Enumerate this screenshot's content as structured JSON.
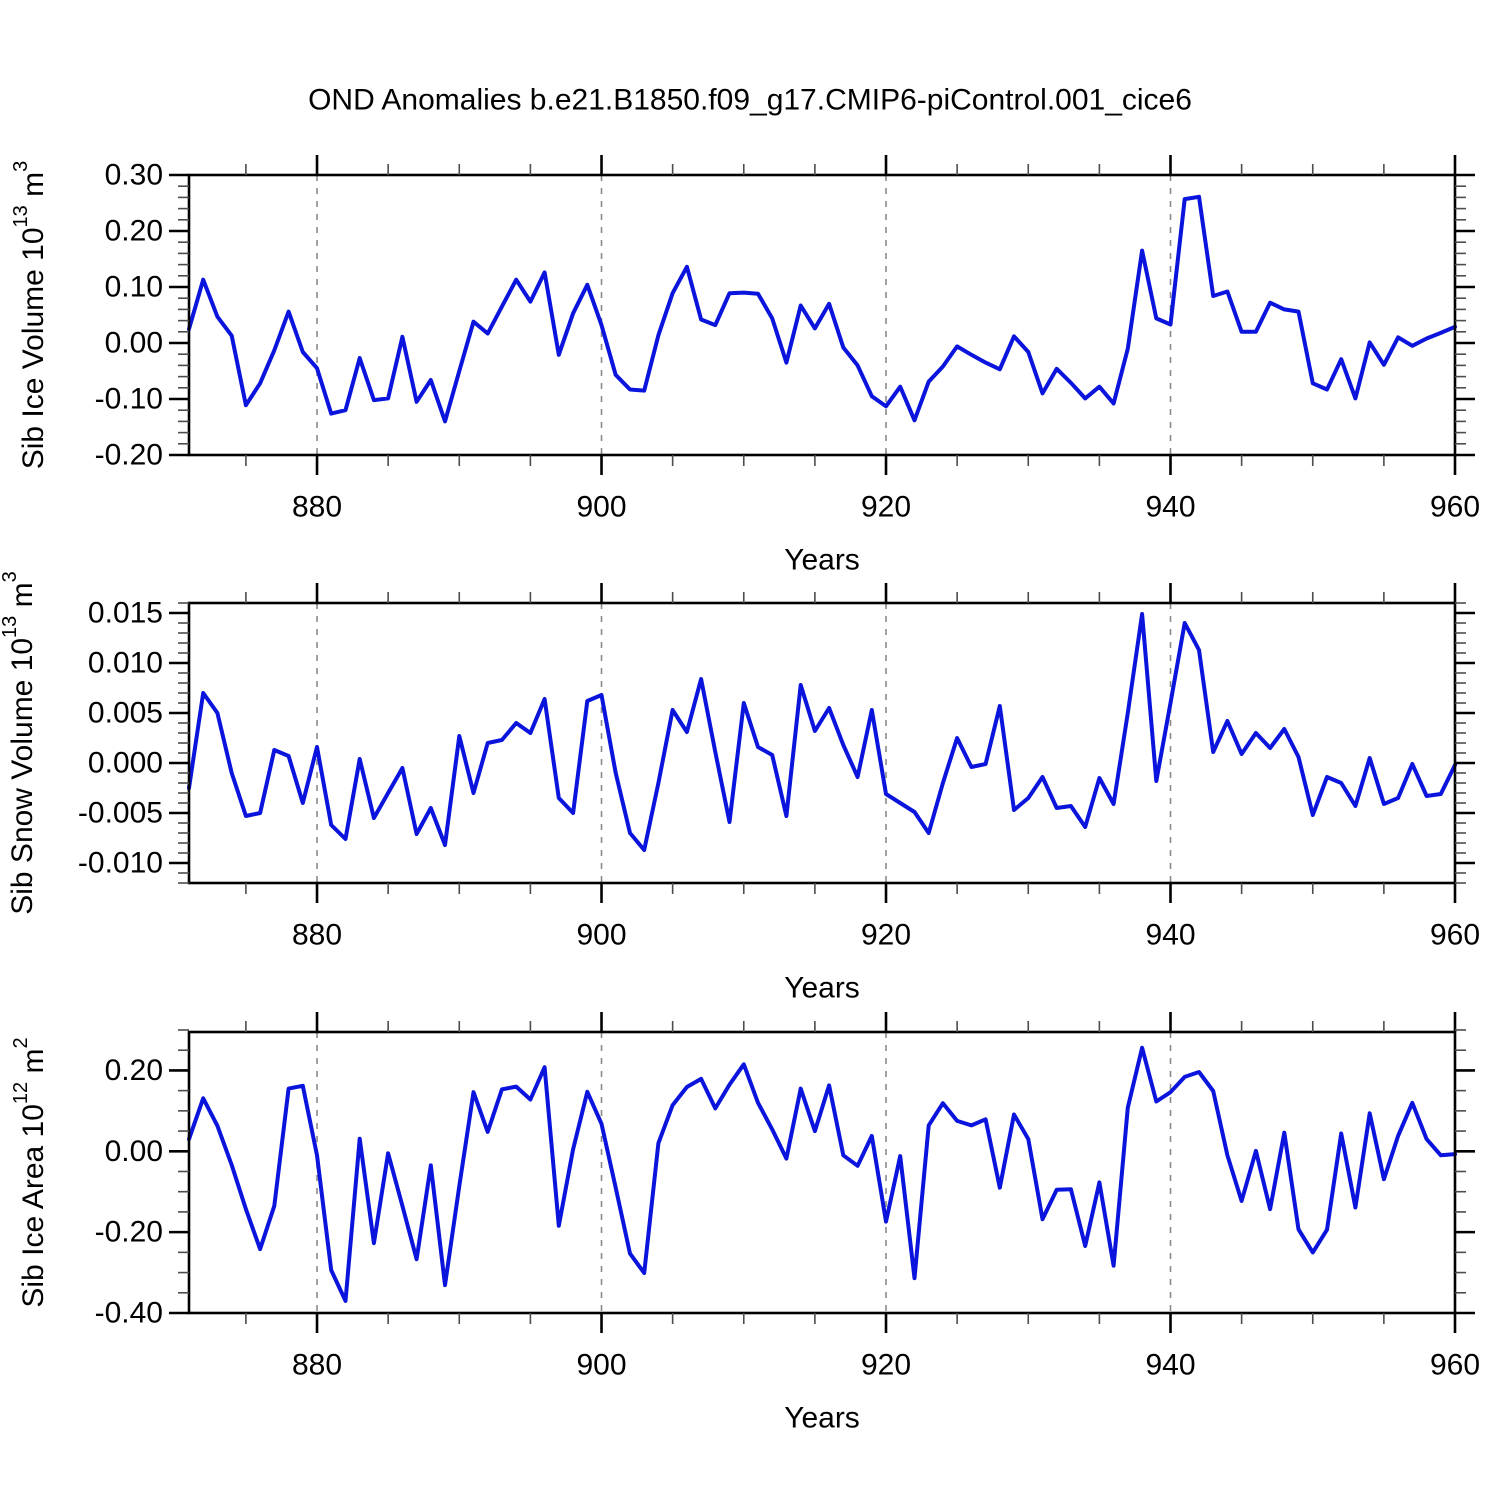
{
  "title": "OND Anomalies b.e21.B1850.f09_g17.CMIP6-piControl.001_cice6",
  "colors": {
    "background": "#ffffff",
    "line": "#0a14dc",
    "axis": "#000000",
    "grid": "#8a8a8a",
    "minor_tick": "#4d4d4d",
    "text": "#000000"
  },
  "x_axis": {
    "label": "Years",
    "x_start": 871,
    "x_end": 960,
    "major_ticks": [
      {
        "value": 880,
        "label": "880"
      },
      {
        "value": 900,
        "label": "900"
      },
      {
        "value": 920,
        "label": "920"
      },
      {
        "value": 940,
        "label": "940"
      },
      {
        "value": 960,
        "label": "960"
      }
    ],
    "minor_step": 5,
    "grid_years": [
      880,
      900,
      920,
      940
    ]
  },
  "years": [
    871,
    872,
    873,
    874,
    875,
    876,
    877,
    878,
    879,
    880,
    881,
    882,
    883,
    884,
    885,
    886,
    887,
    888,
    889,
    890,
    891,
    892,
    893,
    894,
    895,
    896,
    897,
    898,
    899,
    900,
    901,
    902,
    903,
    904,
    905,
    906,
    907,
    908,
    909,
    910,
    911,
    912,
    913,
    914,
    915,
    916,
    917,
    918,
    919,
    920,
    921,
    922,
    923,
    924,
    925,
    926,
    927,
    928,
    929,
    930,
    931,
    932,
    933,
    934,
    935,
    936,
    937,
    938,
    939,
    940,
    941,
    942,
    943,
    944,
    945,
    946,
    947,
    948,
    949,
    950,
    951,
    952,
    953,
    954,
    955,
    956,
    957,
    958,
    959,
    960
  ],
  "chart_data": [
    {
      "type": "line",
      "series_name": "Sib Ice Volume anomaly",
      "xlabel": "Years",
      "ylabel": "Sib Ice Volume 10^13 m^3",
      "ylabel_parts": [
        {
          "text": "Sib Ice Volume 10"
        },
        {
          "text": "13",
          "super": true
        },
        {
          "text": " m"
        },
        {
          "text": "3",
          "super": true
        }
      ],
      "ylim": [
        -0.2,
        0.3
      ],
      "yticks": [
        {
          "value": 0.3,
          "label": "0.30"
        },
        {
          "value": 0.2,
          "label": "0.20"
        },
        {
          "value": 0.1,
          "label": "0.10"
        },
        {
          "value": 0.0,
          "label": "0.00"
        },
        {
          "value": -0.1,
          "label": "-0.10"
        },
        {
          "value": -0.2,
          "label": "-0.20"
        }
      ],
      "yminor_step": 0.02,
      "values": [
        0.025,
        0.113,
        0.047,
        0.013,
        -0.111,
        -0.072,
        -0.013,
        0.056,
        -0.016,
        -0.045,
        -0.126,
        -0.12,
        -0.027,
        -0.102,
        -0.099,
        0.011,
        -0.105,
        -0.066,
        -0.14,
        -0.05,
        0.038,
        0.017,
        0.065,
        0.113,
        0.074,
        0.126,
        -0.021,
        0.053,
        0.104,
        0.032,
        -0.057,
        -0.083,
        -0.085,
        0.014,
        0.089,
        0.136,
        0.042,
        0.032,
        0.089,
        0.09,
        0.088,
        0.044,
        -0.035,
        0.067,
        0.026,
        0.07,
        -0.008,
        -0.04,
        -0.095,
        -0.113,
        -0.078,
        -0.138,
        -0.069,
        -0.042,
        -0.006,
        -0.021,
        -0.035,
        -0.047,
        0.012,
        -0.016,
        -0.09,
        -0.046,
        -0.071,
        -0.099,
        -0.078,
        -0.108,
        -0.01,
        0.165,
        0.044,
        0.033,
        0.257,
        0.261,
        0.084,
        0.092,
        0.02,
        0.02,
        0.072,
        0.06,
        0.056,
        -0.072,
        -0.083,
        -0.029,
        -0.099,
        0.001,
        -0.039,
        0.01,
        -0.005,
        0.008,
        0.018,
        0.029
      ]
    },
    {
      "type": "line",
      "series_name": "Sib Snow Volume anomaly",
      "xlabel": "Years",
      "ylabel": "Sib Snow Volume 10^13 m^3",
      "ylabel_parts": [
        {
          "text": "Sib Snow Volume 10"
        },
        {
          "text": "13",
          "super": true
        },
        {
          "text": " m"
        },
        {
          "text": "3",
          "super": true
        }
      ],
      "ylim": [
        -0.012,
        0.016
      ],
      "yticks": [
        {
          "value": 0.015,
          "label": "0.015"
        },
        {
          "value": 0.01,
          "label": "0.010"
        },
        {
          "value": 0.005,
          "label": "0.005"
        },
        {
          "value": 0.0,
          "label": "0.000"
        },
        {
          "value": -0.005,
          "label": "-0.005"
        },
        {
          "value": -0.01,
          "label": "-0.010"
        }
      ],
      "yminor_step": 0.001,
      "values": [
        -0.0025,
        0.007,
        0.005,
        -0.001,
        -0.0053,
        -0.005,
        0.0013,
        0.0007,
        -0.004,
        0.0016,
        -0.0062,
        -0.0076,
        0.0004,
        -0.0055,
        -0.003,
        -0.0005,
        -0.0071,
        -0.0045,
        -0.0082,
        0.0027,
        -0.003,
        0.002,
        0.0023,
        0.004,
        0.003,
        0.0064,
        -0.0035,
        -0.005,
        0.0062,
        0.0068,
        -0.001,
        -0.007,
        -0.0087,
        -0.002,
        0.0053,
        0.0031,
        0.0084,
        0.0011,
        -0.0059,
        0.006,
        0.0016,
        0.0008,
        -0.0053,
        0.0078,
        0.0032,
        0.0055,
        0.0018,
        -0.0014,
        0.0053,
        -0.0031,
        -0.004,
        -0.0049,
        -0.007,
        -0.002,
        0.0025,
        -0.0004,
        -0.0001,
        0.0057,
        -0.0047,
        -0.0035,
        -0.0014,
        -0.0045,
        -0.0043,
        -0.0064,
        -0.0015,
        -0.0041,
        0.005,
        0.0149,
        -0.0018,
        0.006,
        0.014,
        0.0113,
        0.0011,
        0.0042,
        0.0009,
        0.003,
        0.0015,
        0.0034,
        0.0006,
        -0.0052,
        -0.0014,
        -0.002,
        -0.0043,
        0.0005,
        -0.0041,
        -0.0035,
        -0.0001,
        -0.0033,
        -0.0031,
        -0.0002
      ]
    },
    {
      "type": "line",
      "series_name": "Sib Ice Area anomaly",
      "xlabel": "Years",
      "ylabel": "Sib Ice Area 10^12 m^2",
      "ylabel_parts": [
        {
          "text": "Sib Ice Area 10"
        },
        {
          "text": "12",
          "super": true
        },
        {
          "text": " m"
        },
        {
          "text": "2",
          "super": true
        }
      ],
      "ylim": [
        -0.4,
        0.295
      ],
      "yticks": [
        {
          "value": 0.2,
          "label": "0.20"
        },
        {
          "value": 0.0,
          "label": "0.00"
        },
        {
          "value": -0.2,
          "label": "-0.20"
        },
        {
          "value": -0.4,
          "label": "-0.40"
        }
      ],
      "yminor_step": 0.05,
      "values": [
        0.03,
        0.131,
        0.063,
        -0.034,
        -0.143,
        -0.242,
        -0.135,
        0.155,
        0.162,
        -0.01,
        -0.294,
        -0.37,
        0.031,
        -0.227,
        -0.005,
        -0.135,
        -0.267,
        -0.035,
        -0.331,
        -0.086,
        0.146,
        0.048,
        0.153,
        0.16,
        0.128,
        0.208,
        -0.184,
        0.005,
        0.147,
        0.068,
        -0.09,
        -0.253,
        -0.301,
        0.02,
        0.114,
        0.159,
        0.179,
        0.106,
        0.165,
        0.215,
        0.12,
        0.054,
        -0.018,
        0.155,
        0.05,
        0.163,
        -0.01,
        -0.036,
        0.038,
        -0.174,
        -0.012,
        -0.314,
        0.064,
        0.119,
        0.075,
        0.064,
        0.079,
        -0.09,
        0.091,
        0.03,
        -0.168,
        -0.095,
        -0.094,
        -0.234,
        -0.077,
        -0.283,
        0.108,
        0.256,
        0.123,
        0.146,
        0.184,
        0.196,
        0.149,
        -0.01,
        -0.123,
        0.001,
        -0.143,
        0.046,
        -0.193,
        -0.25,
        -0.194,
        0.044,
        -0.139,
        0.094,
        -0.069,
        0.038,
        0.12,
        0.03,
        -0.01,
        -0.007
      ]
    }
  ]
}
